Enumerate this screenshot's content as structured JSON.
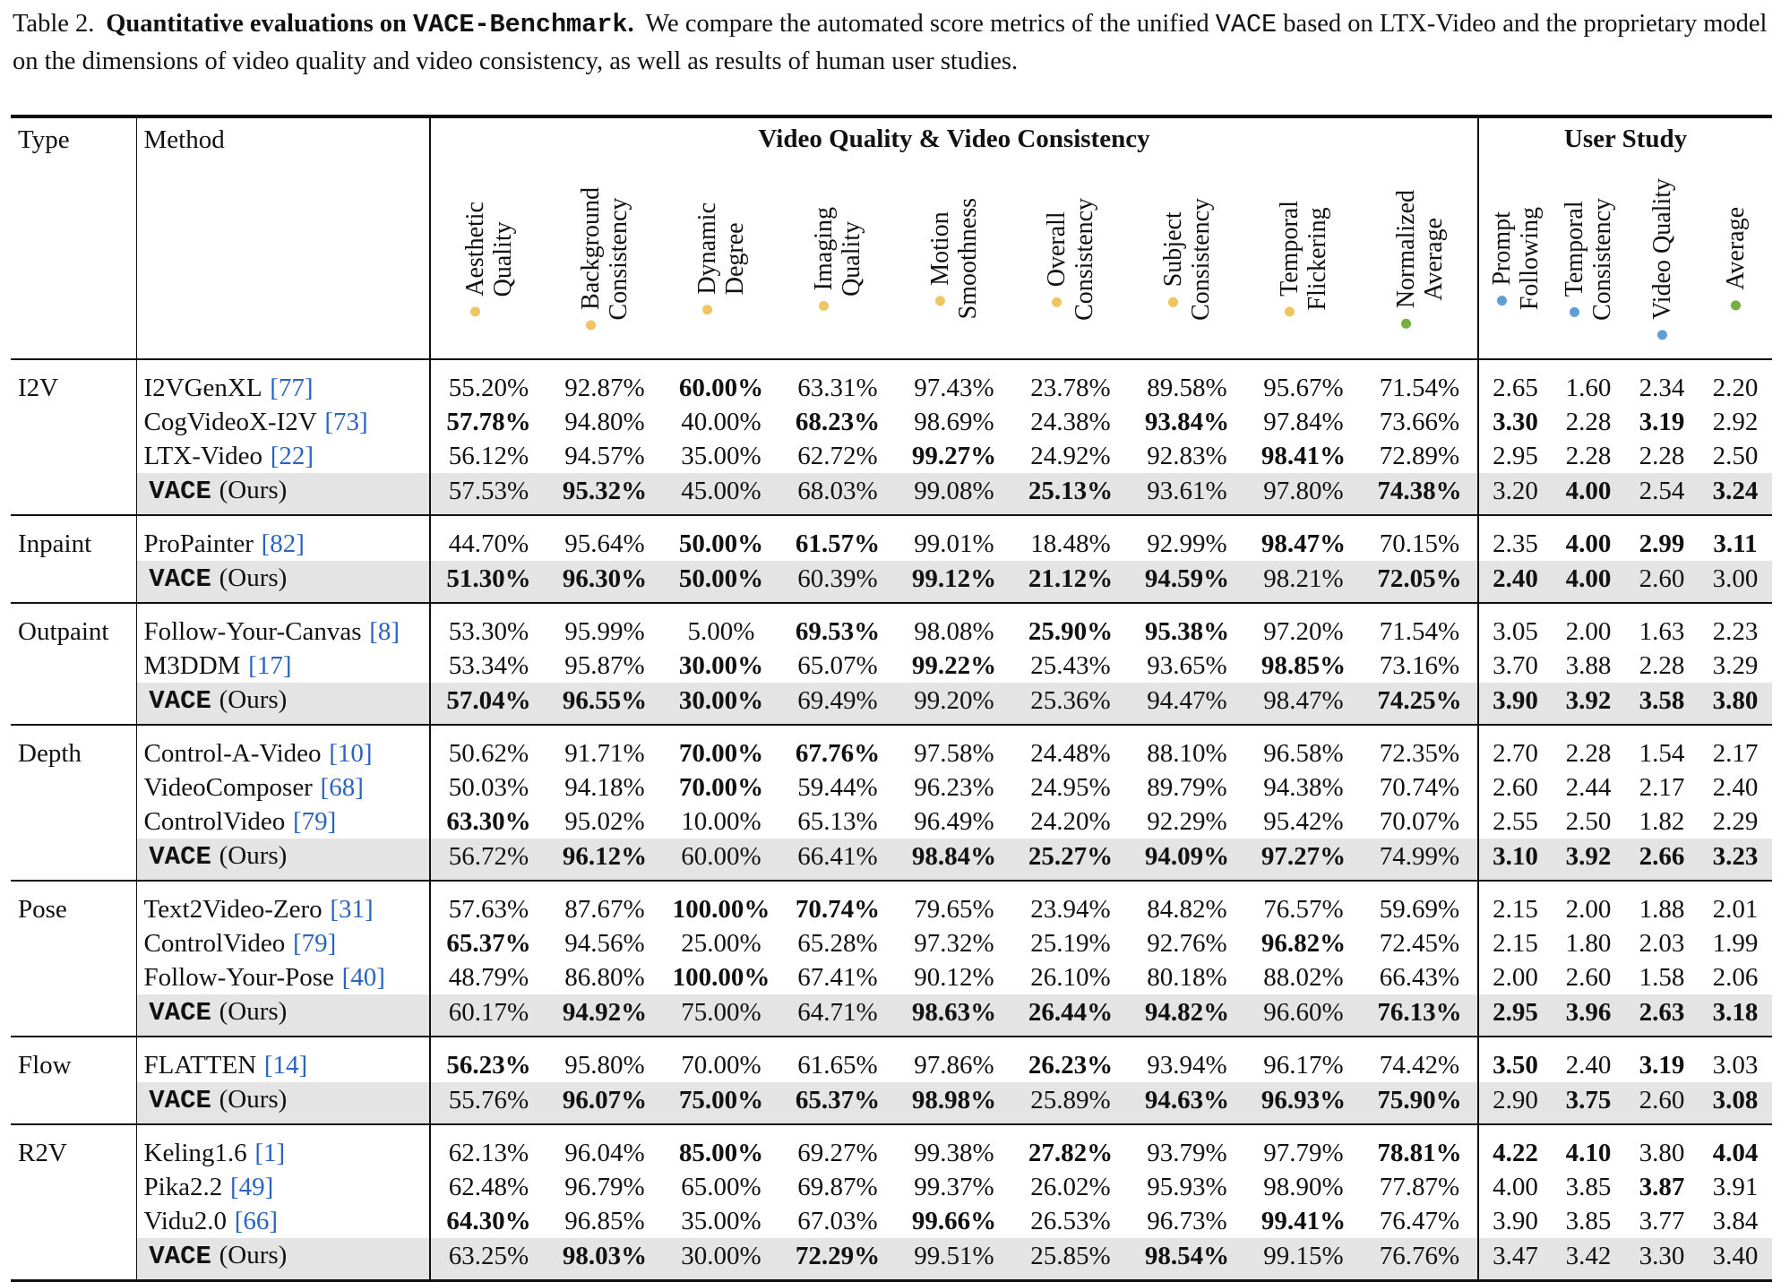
{
  "caption": {
    "label": "Table 2.",
    "title": [
      "Quantitative evaluations on ",
      "VACE-Benchmark",
      "."
    ],
    "text": [
      "We compare the automated score metrics of the unified ",
      "VACE",
      " based on LTX-Video and the proprietary model on the dimensions of video quality and video consistency, as well as results of human user studies."
    ]
  },
  "table": {
    "headers": {
      "type": "Type",
      "method": "Method",
      "groups": [
        {
          "label": "Video Quality & Video Consistency",
          "columns": [
            {
              "lines": [
                "Aesthetic",
                "Quality"
              ],
              "dot": "#efc462"
            },
            {
              "lines": [
                "Background",
                "Consistency"
              ],
              "dot": "#efc462"
            },
            {
              "lines": [
                "Dynamic",
                "Degree"
              ],
              "dot": "#efc462"
            },
            {
              "lines": [
                "Imaging",
                "Quality"
              ],
              "dot": "#efc462"
            },
            {
              "lines": [
                "Motion",
                "Smoothness"
              ],
              "dot": "#efc462"
            },
            {
              "lines": [
                "Overall",
                "Consistency"
              ],
              "dot": "#efc462"
            },
            {
              "lines": [
                "Subject",
                "Consistency"
              ],
              "dot": "#efc462"
            },
            {
              "lines": [
                "Temporal",
                "Flickering"
              ],
              "dot": "#efc462"
            },
            {
              "lines": [
                "Normalized",
                "Average"
              ],
              "dot": "#72b043"
            }
          ]
        },
        {
          "label": "User Study",
          "columns": [
            {
              "lines": [
                "Prompt",
                "Following"
              ],
              "dot": "#5f9fd6"
            },
            {
              "lines": [
                "Temporal",
                "Consistency"
              ],
              "dot": "#5f9fd6"
            },
            {
              "lines": [
                "Video Quality"
              ],
              "dot": "#5f9fd6"
            },
            {
              "lines": [
                "Average"
              ],
              "dot": "#72b043"
            }
          ]
        }
      ]
    },
    "groups": [
      {
        "type": "I2V",
        "rows": [
          {
            "method": "I2VGenXL",
            "ref": "[77]",
            "values": [
              "55.20%",
              "92.87%",
              "60.00%",
              "63.31%",
              "97.43%",
              "23.78%",
              "89.58%",
              "95.67%",
              "71.54%",
              "2.65",
              "1.60",
              "2.34",
              "2.20"
            ],
            "bold": [
              2
            ]
          },
          {
            "method": "CogVideoX-I2V",
            "ref": "[73]",
            "values": [
              "57.78%",
              "94.80%",
              "40.00%",
              "68.23%",
              "98.69%",
              "24.38%",
              "93.84%",
              "97.84%",
              "73.66%",
              "3.30",
              "2.28",
              "3.19",
              "2.92"
            ],
            "bold": [
              0,
              3,
              6,
              9,
              11
            ]
          },
          {
            "method": "LTX-Video",
            "ref": "[22]",
            "values": [
              "56.12%",
              "94.57%",
              "35.00%",
              "62.72%",
              "99.27%",
              "24.92%",
              "92.83%",
              "98.41%",
              "72.89%",
              "2.95",
              "2.28",
              "2.28",
              "2.50"
            ],
            "bold": [
              4,
              7
            ]
          },
          {
            "method": "VACE",
            "suffix": "(Ours)",
            "highlight": true,
            "values": [
              "57.53%",
              "95.32%",
              "45.00%",
              "68.03%",
              "99.08%",
              "25.13%",
              "93.61%",
              "97.80%",
              "74.38%",
              "3.20",
              "4.00",
              "2.54",
              "3.24"
            ],
            "bold": [
              1,
              5,
              8,
              10,
              12
            ]
          }
        ]
      },
      {
        "type": "Inpaint",
        "rows": [
          {
            "method": "ProPainter",
            "ref": "[82]",
            "values": [
              "44.70%",
              "95.64%",
              "50.00%",
              "61.57%",
              "99.01%",
              "18.48%",
              "92.99%",
              "98.47%",
              "70.15%",
              "2.35",
              "4.00",
              "2.99",
              "3.11"
            ],
            "bold": [
              2,
              3,
              7,
              10,
              11,
              12
            ]
          },
          {
            "method": "VACE",
            "suffix": "(Ours)",
            "highlight": true,
            "values": [
              "51.30%",
              "96.30%",
              "50.00%",
              "60.39%",
              "99.12%",
              "21.12%",
              "94.59%",
              "98.21%",
              "72.05%",
              "2.40",
              "4.00",
              "2.60",
              "3.00"
            ],
            "bold": [
              0,
              1,
              2,
              4,
              5,
              6,
              8,
              9,
              10
            ]
          }
        ]
      },
      {
        "type": "Outpaint",
        "rows": [
          {
            "method": "Follow-Your-Canvas",
            "ref": "[8]",
            "values": [
              "53.30%",
              "95.99%",
              "5.00%",
              "69.53%",
              "98.08%",
              "25.90%",
              "95.38%",
              "97.20%",
              "71.54%",
              "3.05",
              "2.00",
              "1.63",
              "2.23"
            ],
            "bold": [
              3,
              5,
              6
            ]
          },
          {
            "method": "M3DDM",
            "ref": "[17]",
            "values": [
              "53.34%",
              "95.87%",
              "30.00%",
              "65.07%",
              "99.22%",
              "25.43%",
              "93.65%",
              "98.85%",
              "73.16%",
              "3.70",
              "3.88",
              "2.28",
              "3.29"
            ],
            "bold": [
              2,
              4,
              7
            ]
          },
          {
            "method": "VACE",
            "suffix": "(Ours)",
            "highlight": true,
            "values": [
              "57.04%",
              "96.55%",
              "30.00%",
              "69.49%",
              "99.20%",
              "25.36%",
              "94.47%",
              "98.47%",
              "74.25%",
              "3.90",
              "3.92",
              "3.58",
              "3.80"
            ],
            "bold": [
              0,
              1,
              2,
              8,
              9,
              10,
              11,
              12
            ]
          }
        ]
      },
      {
        "type": "Depth",
        "rows": [
          {
            "method": "Control-A-Video",
            "ref": "[10]",
            "values": [
              "50.62%",
              "91.71%",
              "70.00%",
              "67.76%",
              "97.58%",
              "24.48%",
              "88.10%",
              "96.58%",
              "72.35%",
              "2.70",
              "2.28",
              "1.54",
              "2.17"
            ],
            "bold": [
              2,
              3
            ]
          },
          {
            "method": "VideoComposer",
            "ref": "[68]",
            "values": [
              "50.03%",
              "94.18%",
              "70.00%",
              "59.44%",
              "96.23%",
              "24.95%",
              "89.79%",
              "94.38%",
              "70.74%",
              "2.60",
              "2.44",
              "2.17",
              "2.40"
            ],
            "bold": [
              2
            ]
          },
          {
            "method": "ControlVideo",
            "ref": "[79]",
            "values": [
              "63.30%",
              "95.02%",
              "10.00%",
              "65.13%",
              "96.49%",
              "24.20%",
              "92.29%",
              "95.42%",
              "70.07%",
              "2.55",
              "2.50",
              "1.82",
              "2.29"
            ],
            "bold": [
              0
            ]
          },
          {
            "method": "VACE",
            "suffix": "(Ours)",
            "highlight": true,
            "values": [
              "56.72%",
              "96.12%",
              "60.00%",
              "66.41%",
              "98.84%",
              "25.27%",
              "94.09%",
              "97.27%",
              "74.99%",
              "3.10",
              "3.92",
              "2.66",
              "3.23"
            ],
            "bold": [
              1,
              4,
              5,
              6,
              7,
              9,
              10,
              11,
              12
            ]
          }
        ]
      },
      {
        "type": "Pose",
        "rows": [
          {
            "method": "Text2Video-Zero",
            "ref": "[31]",
            "values": [
              "57.63%",
              "87.67%",
              "100.00%",
              "70.74%",
              "79.65%",
              "23.94%",
              "84.82%",
              "76.57%",
              "59.69%",
              "2.15",
              "2.00",
              "1.88",
              "2.01"
            ],
            "bold": [
              2,
              3
            ]
          },
          {
            "method": "ControlVideo",
            "ref": "[79]",
            "values": [
              "65.37%",
              "94.56%",
              "25.00%",
              "65.28%",
              "97.32%",
              "25.19%",
              "92.76%",
              "96.82%",
              "72.45%",
              "2.15",
              "1.80",
              "2.03",
              "1.99"
            ],
            "bold": [
              0,
              7
            ]
          },
          {
            "method": "Follow-Your-Pose",
            "ref": "[40]",
            "values": [
              "48.79%",
              "86.80%",
              "100.00%",
              "67.41%",
              "90.12%",
              "26.10%",
              "80.18%",
              "88.02%",
              "66.43%",
              "2.00",
              "2.60",
              "1.58",
              "2.06"
            ],
            "bold": [
              2
            ]
          },
          {
            "method": "VACE",
            "suffix": "(Ours)",
            "highlight": true,
            "values": [
              "60.17%",
              "94.92%",
              "75.00%",
              "64.71%",
              "98.63%",
              "26.44%",
              "94.82%",
              "96.60%",
              "76.13%",
              "2.95",
              "3.96",
              "2.63",
              "3.18"
            ],
            "bold": [
              1,
              4,
              5,
              6,
              8,
              9,
              10,
              11,
              12
            ]
          }
        ]
      },
      {
        "type": "Flow",
        "rows": [
          {
            "method": "FLATTEN",
            "ref": "[14]",
            "values": [
              "56.23%",
              "95.80%",
              "70.00%",
              "61.65%",
              "97.86%",
              "26.23%",
              "93.94%",
              "96.17%",
              "74.42%",
              "3.50",
              "2.40",
              "3.19",
              "3.03"
            ],
            "bold": [
              0,
              5,
              9,
              11
            ]
          },
          {
            "method": "VACE",
            "suffix": "(Ours)",
            "highlight": true,
            "values": [
              "55.76%",
              "96.07%",
              "75.00%",
              "65.37%",
              "98.98%",
              "25.89%",
              "94.63%",
              "96.93%",
              "75.90%",
              "2.90",
              "3.75",
              "2.60",
              "3.08"
            ],
            "bold": [
              1,
              2,
              3,
              4,
              6,
              7,
              8,
              10,
              12
            ]
          }
        ]
      },
      {
        "type": "R2V",
        "rows": [
          {
            "method": "Keling1.6",
            "ref": "[1]",
            "values": [
              "62.13%",
              "96.04%",
              "85.00%",
              "69.27%",
              "99.38%",
              "27.82%",
              "93.79%",
              "97.79%",
              "78.81%",
              "4.22",
              "4.10",
              "3.80",
              "4.04"
            ],
            "bold": [
              2,
              5,
              8,
              9,
              10,
              12
            ]
          },
          {
            "method": "Pika2.2",
            "ref": "[49]",
            "values": [
              "62.48%",
              "96.79%",
              "65.00%",
              "69.87%",
              "99.37%",
              "26.02%",
              "95.93%",
              "98.90%",
              "77.87%",
              "4.00",
              "3.85",
              "3.87",
              "3.91"
            ],
            "bold": [
              11
            ]
          },
          {
            "method": "Vidu2.0",
            "ref": "[66]",
            "values": [
              "64.30%",
              "96.85%",
              "35.00%",
              "67.03%",
              "99.66%",
              "26.53%",
              "96.73%",
              "99.41%",
              "76.47%",
              "3.90",
              "3.85",
              "3.77",
              "3.84"
            ],
            "bold": [
              0,
              4,
              7
            ]
          },
          {
            "method": "VACE",
            "suffix": "(Ours)",
            "highlight": true,
            "values": [
              "63.25%",
              "98.03%",
              "30.00%",
              "72.29%",
              "99.51%",
              "25.85%",
              "98.54%",
              "99.15%",
              "76.76%",
              "3.47",
              "3.42",
              "3.30",
              "3.40"
            ],
            "bold": [
              1,
              3,
              6
            ]
          }
        ]
      }
    ]
  }
}
